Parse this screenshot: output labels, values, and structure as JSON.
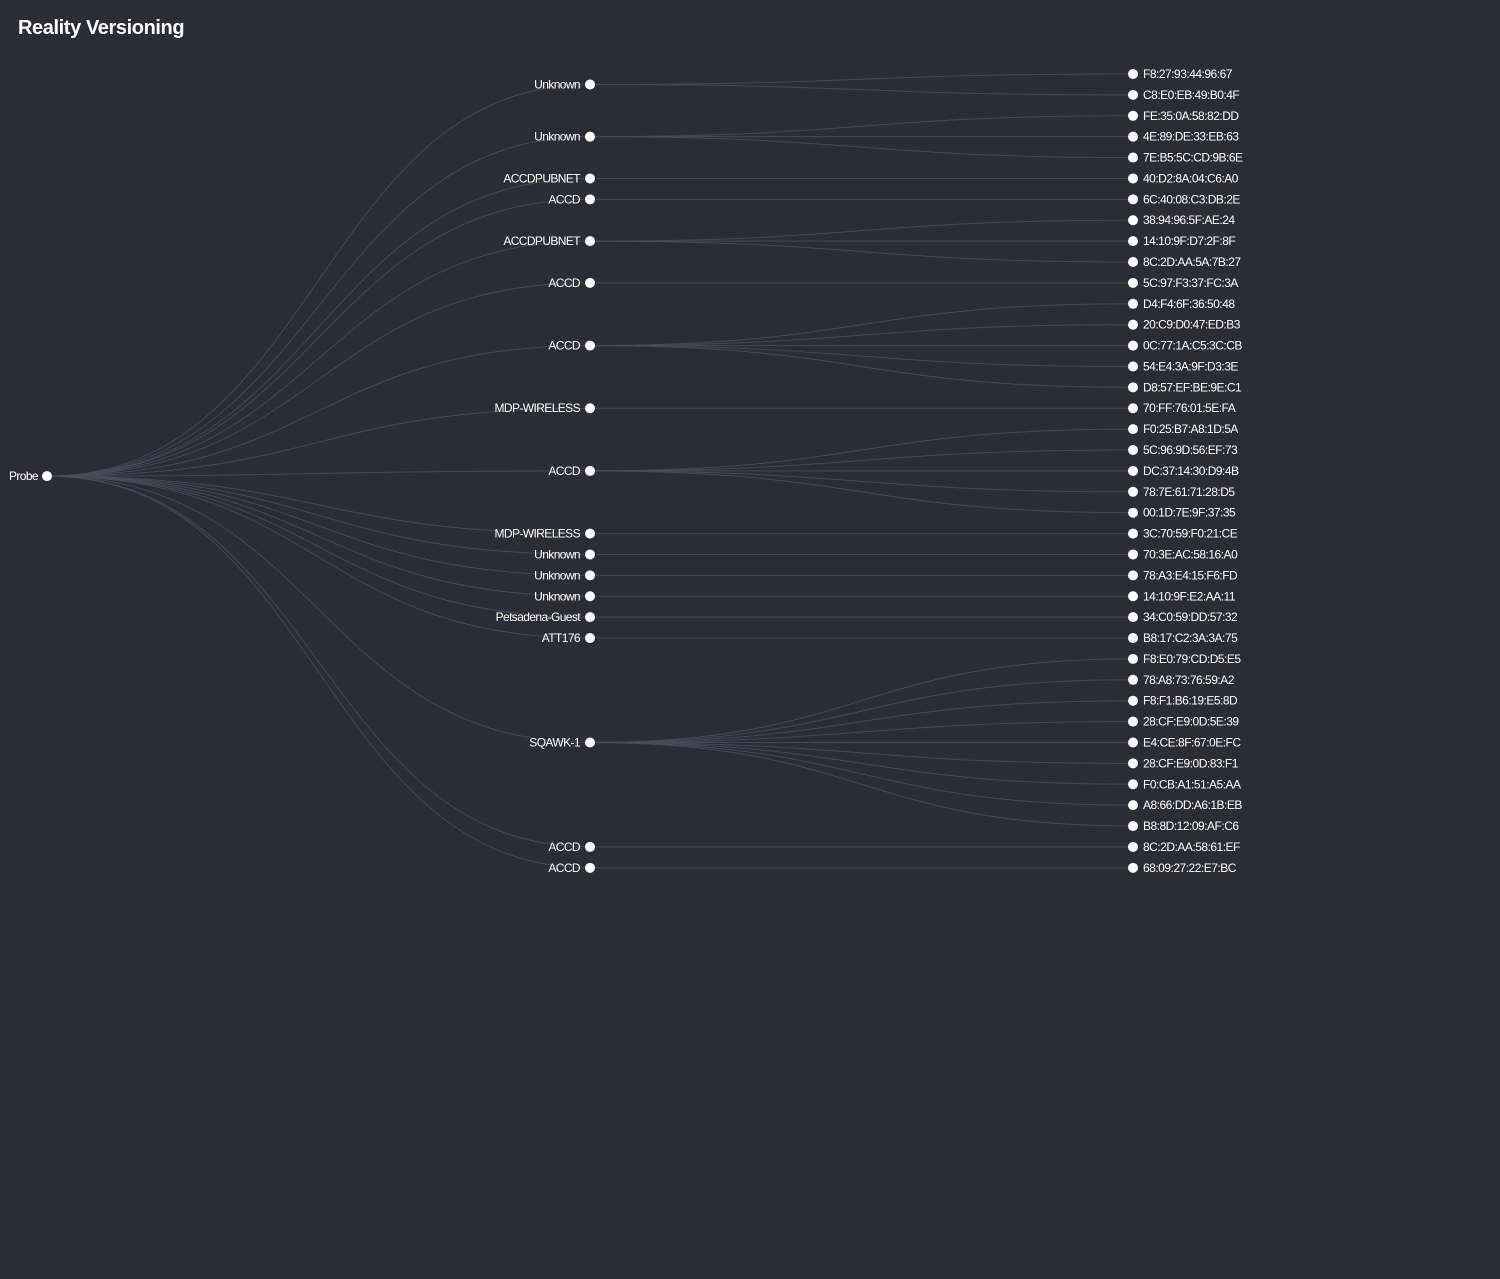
{
  "title": "Reality Versioning",
  "colors": {
    "background": "#2b2c36",
    "link": "#4a4c5a",
    "node": "#ffffff",
    "text": "#ffffff"
  },
  "tree": {
    "name": "Probe",
    "children": [
      {
        "name": "Unknown",
        "children": [
          "F8:27:93:44:96:67",
          "C8:E0:EB:49:B0:4F"
        ]
      },
      {
        "name": "Unknown",
        "children": [
          "FE:35:0A:58:82:DD",
          "4E:89:DE:33:EB:63",
          "7E:B5:5C:CD:9B:6E"
        ]
      },
      {
        "name": "ACCDPUBNET",
        "children": [
          "40:D2:8A:04:C6:A0"
        ]
      },
      {
        "name": "ACCD",
        "children": [
          "6C:40:08:C3:DB:2E"
        ]
      },
      {
        "name": "ACCDPUBNET",
        "children": [
          "38:94:96:5F:AE:24",
          "14:10:9F:D7:2F:8F",
          "8C:2D:AA:5A:7B:27"
        ]
      },
      {
        "name": "ACCD",
        "children": [
          "5C:97:F3:37:FC:3A"
        ]
      },
      {
        "name": "ACCD",
        "children": [
          "D4:F4:6F:36:50:48",
          "20:C9:D0:47:ED:B3",
          "0C:77:1A:C5:3C:CB",
          "54:E4:3A:9F:D3:3E",
          "D8:57:EF:BE:9E:C1"
        ]
      },
      {
        "name": "MDP-WIRELESS",
        "children": [
          "70:FF:76:01:5E:FA"
        ]
      },
      {
        "name": "ACCD",
        "children": [
          "F0:25:B7:A8:1D:5A",
          "5C:96:9D:56:EF:73",
          "DC:37:14:30:D9:4B",
          "78:7E:61:71:28:D5",
          "00:1D:7E:9F:37:35"
        ]
      },
      {
        "name": "MDP-WIRELESS",
        "children": [
          "3C:70:59:F0:21:CE"
        ]
      },
      {
        "name": "Unknown",
        "children": [
          "70:3E:AC:58:16:A0"
        ]
      },
      {
        "name": "Unknown",
        "children": [
          "78:A3:E4:15:F6:FD"
        ]
      },
      {
        "name": "Unknown",
        "children": [
          "14:10:9F:E2:AA:11"
        ]
      },
      {
        "name": "Petsadena-Guest",
        "children": [
          "34:C0:59:DD:57:32"
        ]
      },
      {
        "name": "ATT176",
        "children": [
          "B8:17:C2:3A:3A:75"
        ]
      },
      {
        "name": "SQAWK-1",
        "children": [
          "F8:E0:79:CD:D5:E5",
          "78:A8:73:76:59:A2",
          "F8:F1:B6:19:E5:8D",
          "28:CF:E9:0D:5E:39",
          "E4:CE:8F:67:0E:FC",
          "28:CF:E9:0D:83:F1",
          "F0:CB:A1:51:A5:AA",
          "A8:66:DD:A6:1B:EB",
          "B8:8D:12:09:AF:C6"
        ]
      },
      {
        "name": "ACCD",
        "children": [
          "8C:2D:AA:58:61:EF"
        ]
      },
      {
        "name": "ACCD",
        "children": [
          "68:09:27:22:E7:BC"
        ]
      }
    ]
  }
}
